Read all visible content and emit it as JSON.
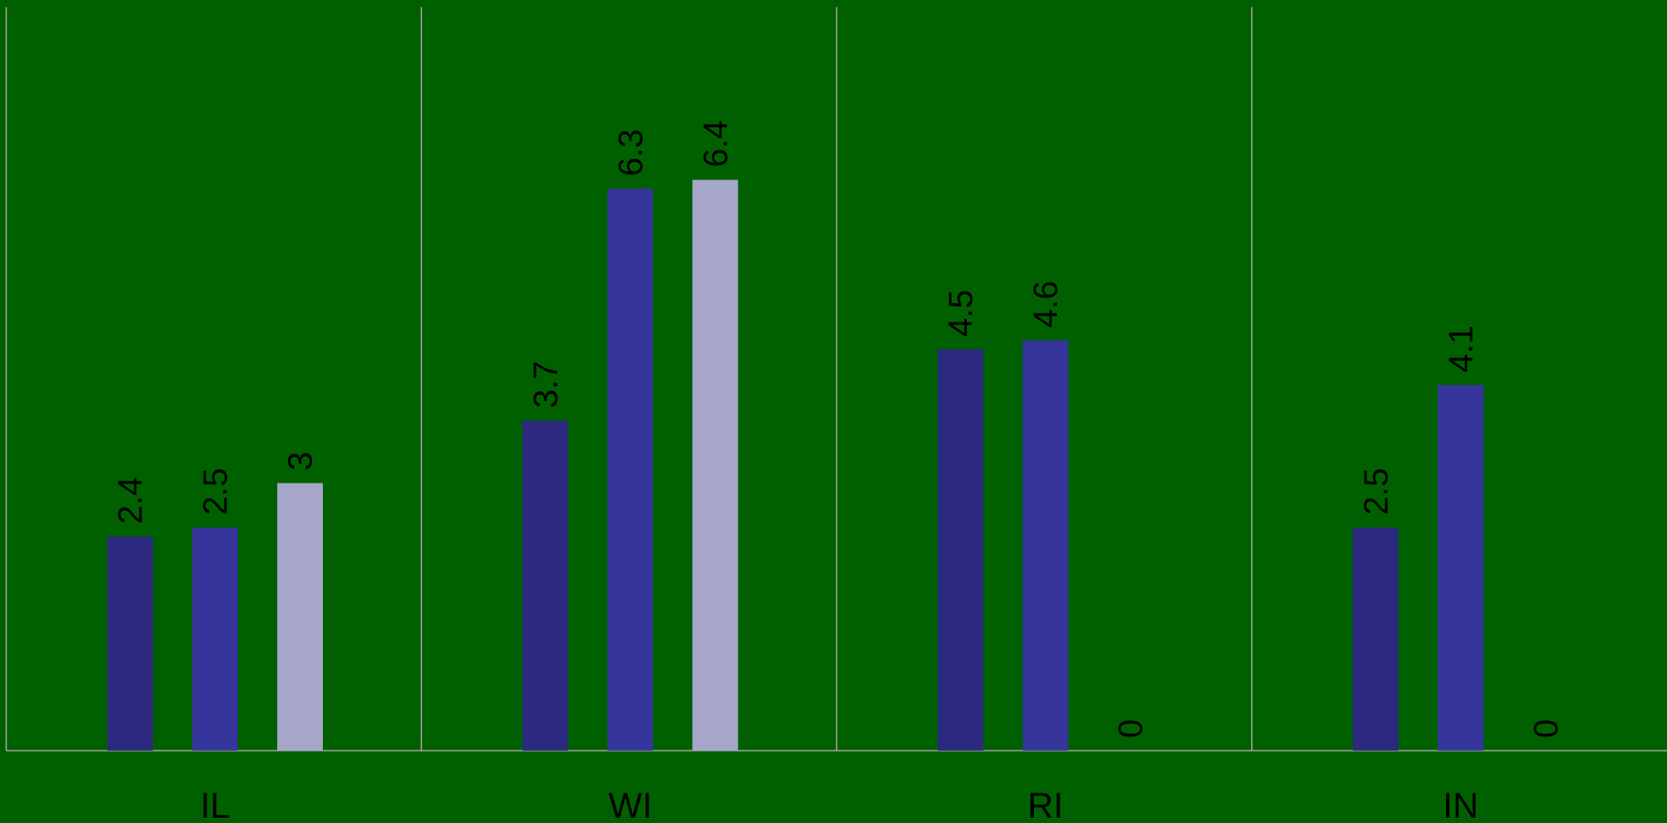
{
  "chart_data": {
    "type": "bar",
    "title": "",
    "xlabel": "",
    "ylabel": "",
    "categories": [
      "IL",
      "WI",
      "RI",
      "IN"
    ],
    "series": [
      {
        "values": [
          2.4,
          3.7,
          4.5,
          2.5
        ],
        "color": "#2b2a80"
      },
      {
        "values": [
          2.5,
          6.3,
          4.6,
          4.1
        ],
        "color": "#35359b"
      },
      {
        "values": [
          3,
          6.4,
          0,
          0
        ],
        "color": "#a6a6c8"
      }
    ],
    "value_labels": [
      [
        "2.4",
        "3.7",
        "4.5",
        "2.5"
      ],
      [
        "2.5",
        "6.3",
        "4.6",
        "4.1"
      ],
      [
        "3",
        "6.4",
        "0",
        "0"
      ]
    ],
    "ylim": [
      0,
      7
    ],
    "grid": false,
    "legend": "none",
    "colors": {
      "background": "#006000",
      "axis": "#a0a0a0",
      "label_text": "#000000"
    }
  }
}
